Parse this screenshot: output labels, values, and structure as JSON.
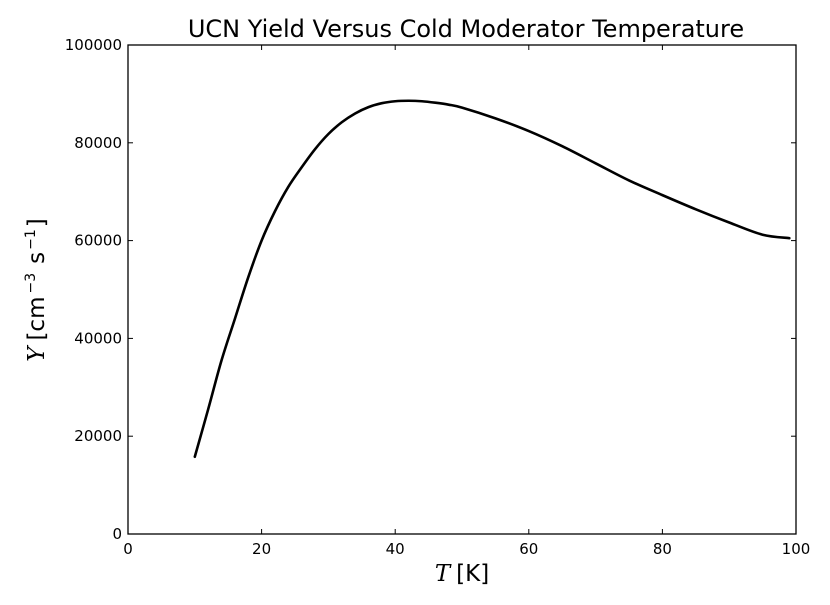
{
  "chart_data": {
    "type": "line",
    "title": "UCN Yield Versus Cold Moderator Temperature",
    "xlabel": {
      "symbol": "T",
      "unit": "[K]"
    },
    "ylabel": {
      "symbol": "Y",
      "unit_pre": "[cm",
      "exp1": "−3",
      "unit_mid": "s",
      "exp2": "−1",
      "unit_post": "]"
    },
    "xlim": [
      0,
      100
    ],
    "ylim": [
      0,
      100000
    ],
    "xticks": [
      0,
      20,
      40,
      60,
      80,
      100
    ],
    "yticks": [
      0,
      20000,
      40000,
      60000,
      80000,
      100000
    ],
    "grid": false,
    "legend": "none",
    "line_color": "#000000",
    "series": [
      {
        "x": [
          10,
          12,
          14,
          16,
          18,
          20,
          22,
          24,
          26,
          28,
          30,
          32,
          34,
          36,
          38,
          40,
          42,
          44,
          46,
          48,
          50,
          55,
          60,
          65,
          70,
          75,
          80,
          85,
          90,
          95,
          99
        ],
        "y": [
          15800,
          25500,
          35500,
          44000,
          52500,
          60000,
          66000,
          71000,
          75000,
          78700,
          81800,
          84200,
          86000,
          87300,
          88100,
          88500,
          88600,
          88500,
          88200,
          87800,
          87200,
          85000,
          82400,
          79300,
          75800,
          72300,
          69300,
          66400,
          63700,
          61200,
          60500
        ]
      }
    ]
  }
}
